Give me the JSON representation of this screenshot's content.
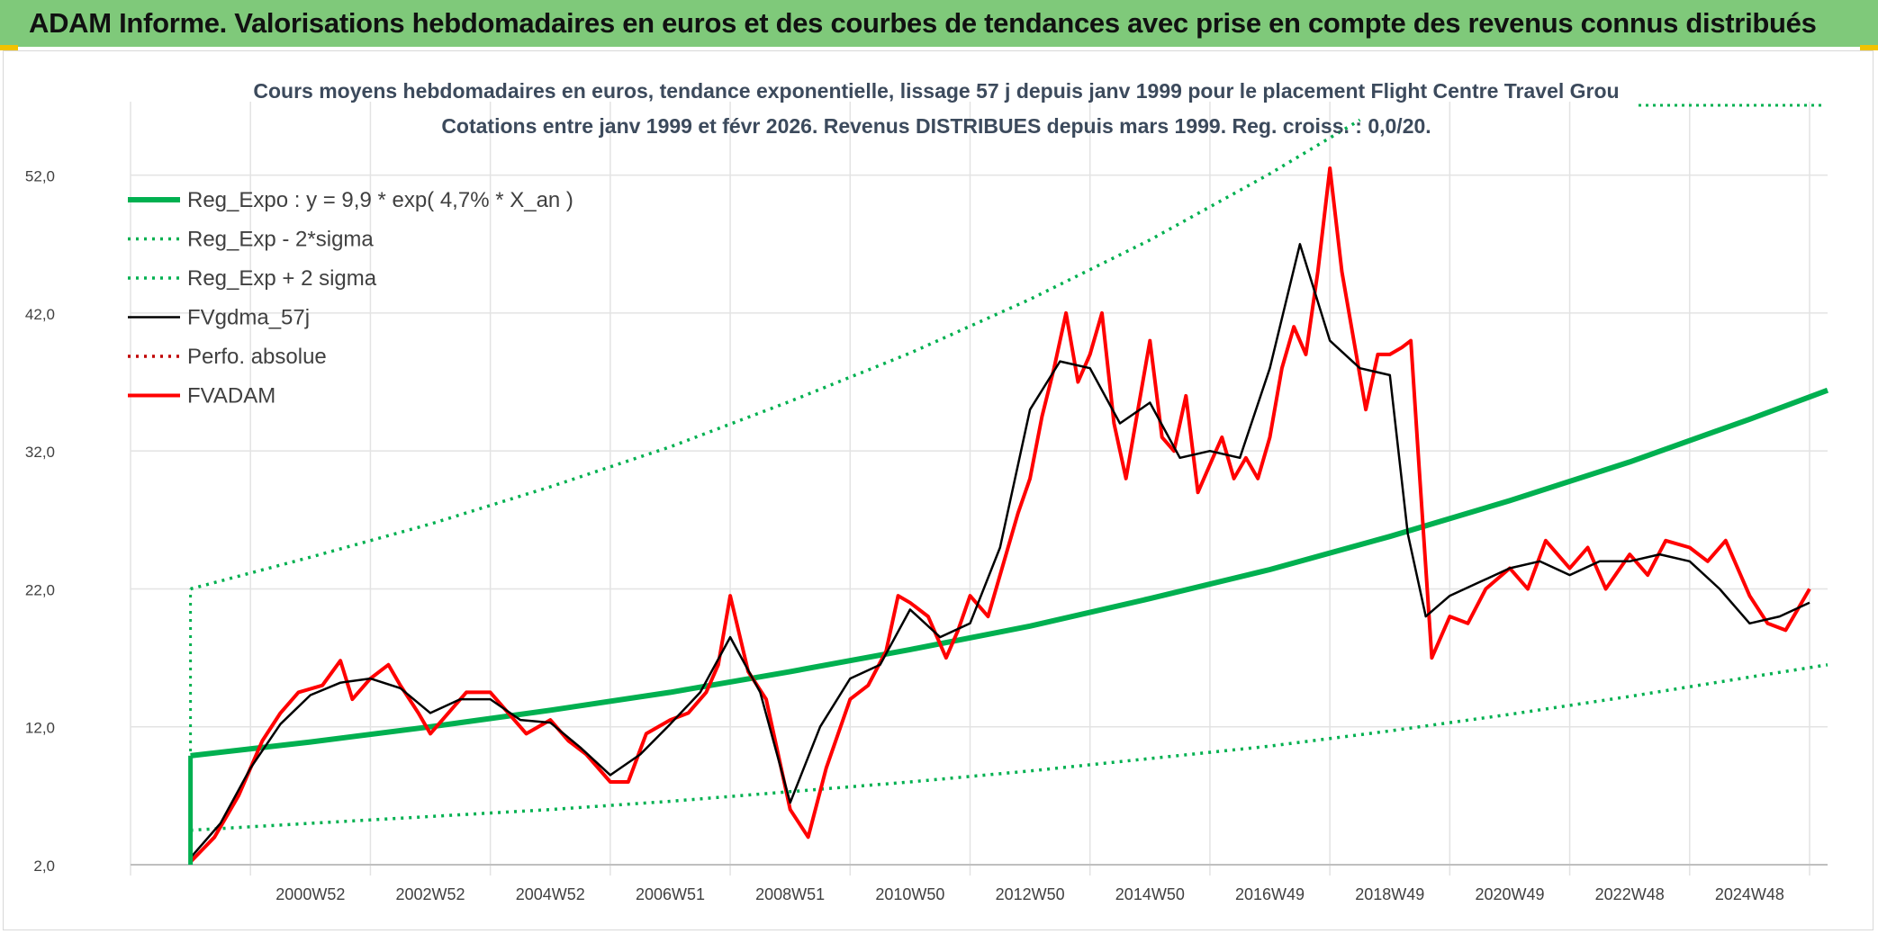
{
  "banner": {
    "title": "ADAM Informe. Valorisations hebdomadaires en euros et des courbes de tendances avec prise en compte des revenus connus distribués"
  },
  "colors": {
    "banner": "#7fc97a",
    "reg_expo": "#00b050",
    "fv_gdma": "#000000",
    "fv_adam": "#ff0000",
    "perfo": "#c00000",
    "grid": "#e3e3e3",
    "axis_text": "#404040",
    "title_text": "#3c4a5c"
  },
  "chart_data": {
    "type": "line",
    "title": "Cours moyens hebdomadaires en euros, tendance exponentielle, lissage 57 j depuis janv 1999 pour le placement Flight Centre Travel Grou",
    "subtitle": "Cotations entre janv 1999 et févr 2026. Revenus DISTRIBUES depuis mars 1999. Reg. croiss. : 0,0/20.",
    "xlabel": "",
    "ylabel": "",
    "ylim": [
      2,
      57
    ],
    "xlim": [
      1998,
      2026.3
    ],
    "yticks": [
      2,
      12,
      22,
      32,
      42,
      52
    ],
    "ytick_labels": [
      "2,0",
      "12,0",
      "22,0",
      "32,0",
      "42,0",
      "52,0"
    ],
    "xtick_labels": [
      "2000W52",
      "2002W52",
      "2004W52",
      "2006W51",
      "2008W51",
      "2010W50",
      "2012W50",
      "2014W50",
      "2016W49",
      "2018W49",
      "2020W49",
      "2022W48",
      "2024W48"
    ],
    "xtick_years": [
      2001,
      2003,
      2005,
      2007,
      2009,
      2011,
      2013,
      2015,
      2017,
      2019,
      2021,
      2023,
      2025
    ],
    "legend_position": "top-left",
    "series": [
      {
        "name": "Reg_Expo : y = 9,9 * exp( 4,7% *  X_an )",
        "style": "solid-thick",
        "color": "#00b050",
        "x": [
          1999.0,
          2001,
          2003,
          2005,
          2007,
          2009,
          2011,
          2013,
          2015,
          2017,
          2019,
          2021,
          2023,
          2025,
          2026.3
        ],
        "values": [
          9.9,
          10.9,
          12.0,
          13.2,
          14.5,
          16.0,
          17.6,
          19.3,
          21.3,
          23.4,
          25.8,
          28.4,
          31.2,
          34.3,
          36.4
        ]
      },
      {
        "name": "Reg_Exp - 2*sigma",
        "style": "dotted",
        "color": "#00b050",
        "x": [
          1999.0,
          2001,
          2003,
          2005,
          2007,
          2009,
          2011,
          2013,
          2015,
          2017,
          2019,
          2021,
          2023,
          2025,
          2026.3
        ],
        "values": [
          4.5,
          5.0,
          5.5,
          6.0,
          6.6,
          7.3,
          8.0,
          8.8,
          9.7,
          10.6,
          11.7,
          12.9,
          14.2,
          15.6,
          16.5
        ]
      },
      {
        "name": "Reg_Exp + 2 sigma",
        "style": "dotted",
        "color": "#00b050",
        "x": [
          1999.0,
          2001,
          2003,
          2005,
          2007,
          2009,
          2011,
          2013,
          2015,
          2017,
          2018.5
        ],
        "values": [
          22.0,
          24.3,
          26.7,
          29.4,
          32.3,
          35.6,
          39.1,
          43.0,
          47.3,
          52.1,
          56.0
        ]
      },
      {
        "name": "FVgdma_57j",
        "style": "solid",
        "color": "#000000",
        "x": [
          1999.0,
          1999.5,
          2000.0,
          2000.5,
          2001.0,
          2001.5,
          2002.0,
          2002.5,
          2003.0,
          2003.5,
          2004.0,
          2004.5,
          2005.0,
          2005.5,
          2006.0,
          2006.5,
          2007.0,
          2007.5,
          2008.0,
          2008.5,
          2009.0,
          2009.5,
          2010.0,
          2010.5,
          2011.0,
          2011.5,
          2012.0,
          2012.5,
          2013.0,
          2013.5,
          2014.0,
          2014.5,
          2015.0,
          2015.5,
          2016.0,
          2016.5,
          2017.0,
          2017.5,
          2018.0,
          2018.5,
          2019.0,
          2019.3,
          2019.6,
          2020.0,
          2020.5,
          2021.0,
          2021.5,
          2022.0,
          2022.5,
          2023.0,
          2023.5,
          2024.0,
          2024.5,
          2025.0,
          2025.5,
          2026.0
        ],
        "values": [
          2.5,
          5.0,
          9.0,
          12.2,
          14.3,
          15.2,
          15.5,
          14.8,
          13.0,
          14.0,
          14.0,
          12.5,
          12.3,
          10.5,
          8.5,
          10.0,
          12.2,
          14.5,
          18.5,
          14.5,
          6.5,
          12.0,
          15.5,
          16.5,
          20.5,
          18.5,
          19.5,
          25.0,
          35.0,
          38.5,
          38.0,
          34.0,
          35.5,
          31.5,
          32.0,
          31.5,
          38.0,
          47.0,
          40.0,
          38.0,
          37.5,
          26.0,
          20.0,
          21.5,
          22.5,
          23.5,
          24.0,
          23.0,
          24.0,
          24.0,
          24.5,
          24.0,
          22.0,
          19.5,
          20.0,
          21.0
        ]
      },
      {
        "name": "Perfo. absolue",
        "style": "dotted",
        "color": "#c00000",
        "x": [],
        "values": []
      },
      {
        "name": "FVADAM",
        "style": "solid-thick",
        "color": "#ff0000",
        "x": [
          1999.0,
          1999.4,
          1999.8,
          2000.2,
          2000.5,
          2000.8,
          2001.2,
          2001.5,
          2001.7,
          2002.0,
          2002.3,
          2002.5,
          2002.8,
          2003.0,
          2003.3,
          2003.6,
          2004.0,
          2004.3,
          2004.6,
          2005.0,
          2005.3,
          2005.6,
          2006.0,
          2006.3,
          2006.6,
          2007.0,
          2007.3,
          2007.6,
          2007.8,
          2008.0,
          2008.3,
          2008.6,
          2008.8,
          2009.0,
          2009.3,
          2009.6,
          2010.0,
          2010.3,
          2010.6,
          2010.8,
          2011.0,
          2011.3,
          2011.6,
          2011.8,
          2012.0,
          2012.3,
          2012.6,
          2012.8,
          2013.0,
          2013.2,
          2013.4,
          2013.6,
          2013.8,
          2014.0,
          2014.2,
          2014.4,
          2014.6,
          2014.8,
          2015.0,
          2015.2,
          2015.4,
          2015.6,
          2015.8,
          2016.0,
          2016.2,
          2016.4,
          2016.6,
          2016.8,
          2017.0,
          2017.2,
          2017.4,
          2017.6,
          2017.8,
          2018.0,
          2018.2,
          2018.4,
          2018.6,
          2018.8,
          2019.0,
          2019.2,
          2019.35,
          2019.5,
          2019.7,
          2020.0,
          2020.3,
          2020.6,
          2021.0,
          2021.3,
          2021.6,
          2022.0,
          2022.3,
          2022.6,
          2023.0,
          2023.3,
          2023.6,
          2024.0,
          2024.3,
          2024.6,
          2025.0,
          2025.3,
          2025.6,
          2026.0
        ],
        "values": [
          2.2,
          4.0,
          7.0,
          11.0,
          13.0,
          14.5,
          15.0,
          16.8,
          14.0,
          15.5,
          16.5,
          15.0,
          13.0,
          11.5,
          13.0,
          14.5,
          14.5,
          13.0,
          11.5,
          12.5,
          11.0,
          10.0,
          8.0,
          8.0,
          11.5,
          12.5,
          13.0,
          14.5,
          16.5,
          21.5,
          16.0,
          14.0,
          10.0,
          6.0,
          4.0,
          9.0,
          14.0,
          15.0,
          17.5,
          21.5,
          21.0,
          20.0,
          17.0,
          19.0,
          21.5,
          20.0,
          24.5,
          27.5,
          30.0,
          34.5,
          38.0,
          42.0,
          37.0,
          39.0,
          42.0,
          34.0,
          30.0,
          35.0,
          40.0,
          33.0,
          32.0,
          36.0,
          29.0,
          31.0,
          33.0,
          30.0,
          31.5,
          30.0,
          33.0,
          38.0,
          41.0,
          39.0,
          45.0,
          52.5,
          45.0,
          40.0,
          35.0,
          39.0,
          39.0,
          39.5,
          40.0,
          30.0,
          17.0,
          20.0,
          19.5,
          22.0,
          23.5,
          22.0,
          25.5,
          23.5,
          25.0,
          22.0,
          24.5,
          23.0,
          25.5,
          25.0,
          24.0,
          25.5,
          21.5,
          19.5,
          19.0,
          22.0
        ]
      }
    ]
  }
}
